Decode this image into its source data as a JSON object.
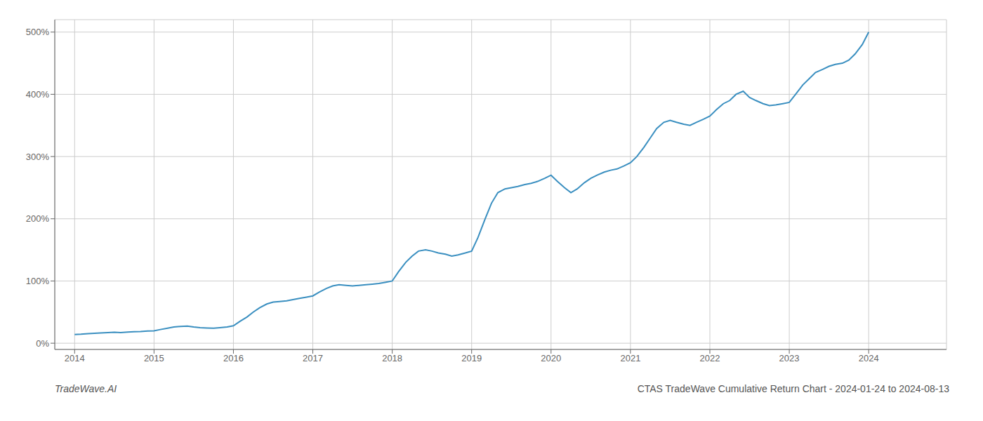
{
  "chart_data": {
    "type": "line",
    "title": "CTAS TradeWave Cumulative Return Chart - 2024-01-24 to 2024-08-13",
    "annotations": [
      "TradeWave.AI"
    ],
    "color": "#3a8fc0",
    "grid": true,
    "x": [
      2014.0,
      2014.08,
      2014.17,
      2014.25,
      2014.33,
      2014.42,
      2014.5,
      2014.58,
      2014.67,
      2014.75,
      2014.83,
      2014.92,
      2015.0,
      2015.08,
      2015.17,
      2015.25,
      2015.33,
      2015.42,
      2015.5,
      2015.58,
      2015.67,
      2015.75,
      2015.83,
      2015.92,
      2016.0,
      2016.08,
      2016.17,
      2016.25,
      2016.33,
      2016.42,
      2016.5,
      2016.58,
      2016.67,
      2016.75,
      2016.83,
      2016.92,
      2017.0,
      2017.08,
      2017.17,
      2017.25,
      2017.33,
      2017.42,
      2017.5,
      2017.58,
      2017.67,
      2017.75,
      2017.83,
      2017.92,
      2018.0,
      2018.08,
      2018.17,
      2018.25,
      2018.33,
      2018.42,
      2018.5,
      2018.58,
      2018.67,
      2018.75,
      2018.83,
      2018.92,
      2019.0,
      2019.08,
      2019.17,
      2019.25,
      2019.33,
      2019.42,
      2019.5,
      2019.58,
      2019.67,
      2019.75,
      2019.83,
      2019.92,
      2020.0,
      2020.08,
      2020.17,
      2020.25,
      2020.33,
      2020.42,
      2020.5,
      2020.58,
      2020.67,
      2020.75,
      2020.83,
      2020.92,
      2021.0,
      2021.08,
      2021.17,
      2021.25,
      2021.33,
      2021.42,
      2021.5,
      2021.58,
      2021.67,
      2021.75,
      2021.83,
      2021.92,
      2022.0,
      2022.08,
      2022.17,
      2022.25,
      2022.33,
      2022.42,
      2022.5,
      2022.58,
      2022.67,
      2022.75,
      2022.83,
      2022.92,
      2023.0,
      2023.08,
      2023.17,
      2023.25,
      2023.33,
      2023.42,
      2023.5,
      2023.58,
      2023.67,
      2023.75,
      2023.83,
      2023.92,
      2024.0
    ],
    "values": [
      14,
      14.5,
      15.5,
      16,
      16.5,
      17,
      17.5,
      17.2,
      17.8,
      18.5,
      18.8,
      19.5,
      20,
      22,
      24,
      26,
      27,
      27.5,
      26,
      25,
      24.5,
      24,
      25,
      26,
      28,
      35,
      42,
      50,
      57,
      63,
      66,
      67,
      68,
      70,
      72,
      74,
      76,
      82,
      88,
      92,
      94,
      93,
      92,
      93,
      94,
      95,
      96,
      98,
      100,
      115,
      130,
      140,
      148,
      150,
      148,
      145,
      143,
      140,
      142,
      145,
      148,
      170,
      200,
      225,
      242,
      248,
      250,
      252,
      255,
      257,
      260,
      265,
      270,
      260,
      250,
      242,
      248,
      258,
      265,
      270,
      275,
      278,
      280,
      285,
      290,
      300,
      315,
      330,
      345,
      355,
      358,
      355,
      352,
      350,
      355,
      360,
      365,
      375,
      385,
      390,
      400,
      405,
      395,
      390,
      385,
      382,
      383,
      385,
      387,
      400,
      415,
      425,
      435,
      440,
      445,
      448,
      450,
      455,
      465,
      480,
      500
    ],
    "xlim": [
      2013.75,
      2024.98
    ],
    "xticks": [
      2014,
      2015,
      2016,
      2017,
      2018,
      2019,
      2020,
      2021,
      2022,
      2023,
      2024
    ],
    "ylim": [
      -10,
      520
    ],
    "yticks": [
      {
        "value": 0,
        "label": "0%"
      },
      {
        "value": 100,
        "label": "100%"
      },
      {
        "value": 200,
        "label": "200%"
      },
      {
        "value": 300,
        "label": "300%"
      },
      {
        "value": 400,
        "label": "400%"
      },
      {
        "value": 500,
        "label": "500%"
      }
    ]
  }
}
